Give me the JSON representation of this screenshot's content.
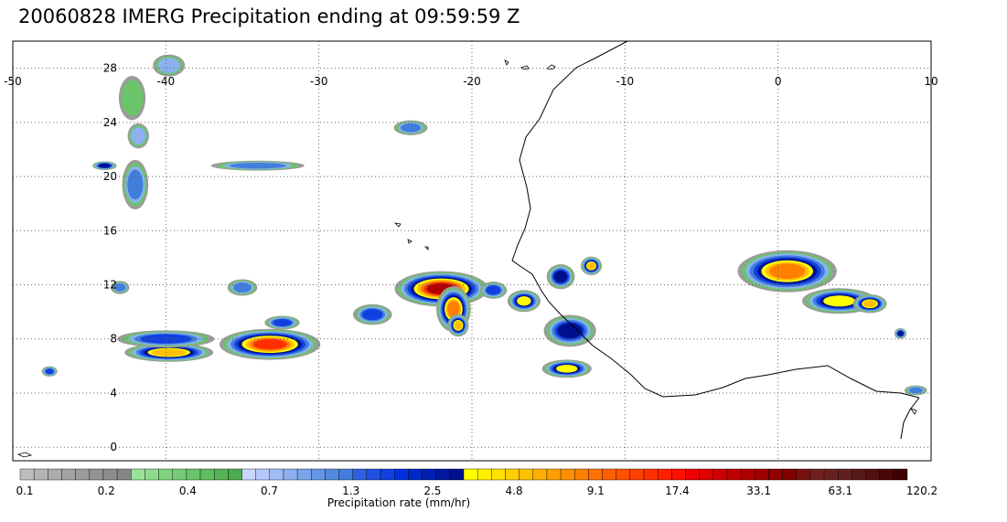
{
  "title": "20060828 IMERG Precipitation ending at 09:59:59 Z",
  "map": {
    "lon_range": [
      -50,
      10
    ],
    "lat_range": [
      -1,
      30
    ],
    "lon_ticks": [
      -50,
      -40,
      -30,
      -20,
      -10,
      0,
      10
    ],
    "lon_tick_labels": [
      "-50",
      "-40",
      "-30",
      "-20",
      "-10",
      "0",
      "10"
    ],
    "lat_ticks": [
      0,
      4,
      8,
      12,
      16,
      20,
      24,
      28
    ],
    "lat_tick_labels": [
      "0",
      "4",
      "8",
      "12",
      "16",
      "20",
      "24",
      "28"
    ],
    "gridlines": true,
    "coastline_color": "#000000"
  },
  "precip_cells": [
    {
      "lon": -22.0,
      "lat": 11.7,
      "w": 4.2,
      "h": 1.8,
      "level": 10
    },
    {
      "lon": -21.2,
      "lat": 10.2,
      "w": 1.6,
      "h": 2.4,
      "level": 8
    },
    {
      "lon": -20.9,
      "lat": 9.0,
      "w": 1.0,
      "h": 1.2,
      "level": 7
    },
    {
      "lon": -33.2,
      "lat": 7.6,
      "w": 4.6,
      "h": 1.6,
      "level": 9
    },
    {
      "lon": -32.4,
      "lat": 9.2,
      "w": 1.8,
      "h": 0.8,
      "level": 4
    },
    {
      "lon": -39.8,
      "lat": 7.0,
      "w": 4.2,
      "h": 1.0,
      "level": 7
    },
    {
      "lon": -40.0,
      "lat": 8.0,
      "w": 5.0,
      "h": 1.0,
      "level": 4
    },
    {
      "lon": -26.5,
      "lat": 9.8,
      "w": 2.0,
      "h": 1.2,
      "level": 4
    },
    {
      "lon": -16.6,
      "lat": 10.8,
      "w": 1.6,
      "h": 1.2,
      "level": 6
    },
    {
      "lon": -18.6,
      "lat": 11.6,
      "w": 1.4,
      "h": 1.0,
      "level": 4
    },
    {
      "lon": -14.2,
      "lat": 12.6,
      "w": 1.4,
      "h": 1.4,
      "level": 5
    },
    {
      "lon": -12.2,
      "lat": 13.4,
      "w": 1.0,
      "h": 1.0,
      "level": 7
    },
    {
      "lon": -13.6,
      "lat": 8.6,
      "w": 2.6,
      "h": 1.8,
      "level": 5
    },
    {
      "lon": -13.8,
      "lat": 5.8,
      "w": 2.4,
      "h": 1.0,
      "level": 6
    },
    {
      "lon": 0.6,
      "lat": 13.0,
      "w": 4.6,
      "h": 2.2,
      "level": 8
    },
    {
      "lon": 4.0,
      "lat": 10.8,
      "w": 3.6,
      "h": 1.4,
      "level": 6
    },
    {
      "lon": 6.0,
      "lat": 10.6,
      "w": 1.6,
      "h": 1.0,
      "level": 7
    },
    {
      "lon": -34.0,
      "lat": 20.8,
      "w": 5.0,
      "h": 0.6,
      "level": 3
    },
    {
      "lon": -44.0,
      "lat": 20.8,
      "w": 1.2,
      "h": 0.5,
      "level": 5
    },
    {
      "lon": -42.0,
      "lat": 19.4,
      "w": 1.4,
      "h": 3.0,
      "level": 3
    },
    {
      "lon": -41.8,
      "lat": 23.0,
      "w": 1.2,
      "h": 1.6,
      "level": 2
    },
    {
      "lon": -42.2,
      "lat": 25.8,
      "w": 1.6,
      "h": 3.0,
      "level": 1
    },
    {
      "lon": -39.8,
      "lat": 28.2,
      "w": 1.8,
      "h": 1.4,
      "level": 2
    },
    {
      "lon": -24.0,
      "lat": 23.6,
      "w": 1.8,
      "h": 0.9,
      "level": 3
    },
    {
      "lon": -43.0,
      "lat": 11.8,
      "w": 1.0,
      "h": 0.8,
      "level": 3
    },
    {
      "lon": -35.0,
      "lat": 11.8,
      "w": 1.6,
      "h": 1.0,
      "level": 3
    },
    {
      "lon": -47.6,
      "lat": 5.6,
      "w": 0.8,
      "h": 0.6,
      "level": 4
    },
    {
      "lon": 8.0,
      "lat": 8.4,
      "w": 0.6,
      "h": 0.6,
      "level": 5
    },
    {
      "lon": 9.0,
      "lat": 4.2,
      "w": 1.2,
      "h": 0.6,
      "level": 3
    }
  ],
  "colorbar": {
    "label": "Precipitation rate (mm/hr)",
    "colors": [
      "#bdbdbd",
      "#b4b4b4",
      "#ababab",
      "#a3a3a3",
      "#9b9b9b",
      "#939393",
      "#8c8c8c",
      "#868686",
      "#9be29b",
      "#8edb8e",
      "#80d480",
      "#75cc75",
      "#6ac46a",
      "#5fbc5f",
      "#55b455",
      "#4bac4b",
      "#c8d7ff",
      "#b4c8fa",
      "#9fbcf5",
      "#8cb0f0",
      "#78a4ea",
      "#6596e6",
      "#538ae0",
      "#417edc",
      "#3060e0",
      "#2050e0",
      "#1040e0",
      "#0030e0",
      "#0028c8",
      "#0020b4",
      "#0018a0",
      "#00108c",
      "#ffff00",
      "#fff000",
      "#ffe000",
      "#ffd000",
      "#ffc000",
      "#ffb000",
      "#ffa000",
      "#ff9000",
      "#ff8000",
      "#ff7000",
      "#ff6000",
      "#ff5000",
      "#ff4000",
      "#ff3000",
      "#ff2000",
      "#ff1000",
      "#f00000",
      "#e00000",
      "#d00000",
      "#c00000",
      "#b00000",
      "#a00000",
      "#900000",
      "#800000",
      "#7a1010",
      "#702020",
      "#682020",
      "#602020",
      "#581818",
      "#501010",
      "#480808",
      "#400000"
    ],
    "labels": [
      "0.1",
      "0.2",
      "0.4",
      "0.7",
      "1.3",
      "2.5",
      "4.8",
      "9.1",
      "17.4",
      "33.1",
      "63.1",
      "120.2"
    ]
  }
}
